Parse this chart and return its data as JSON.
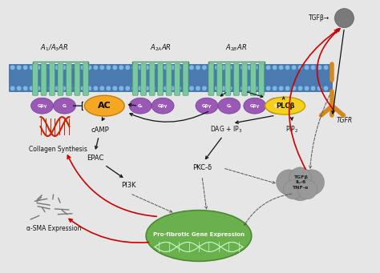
{
  "bg_color": "#e6e6e6",
  "colors": {
    "membrane_dot": "#7ab8e8",
    "membrane_stripe": "#4a7ab0",
    "receptor_helix": "#7bc8a0",
    "g_protein_purple": "#9b59b6",
    "ac_orange": "#f5a623",
    "plcb_yellow": "#f5d020",
    "tgfr_orange": "#d4891a",
    "green_nucleus": "#6ab04c",
    "gray_cloud": "#999999",
    "collagen_red": "#cc2200",
    "sma_gray": "#888888",
    "tgfb_ball": "#7a7a7a",
    "red_arrow": "#cc0000",
    "black_arrow": "#111111",
    "dashed_arrow": "#555555"
  },
  "labels": {
    "A1A3AR": "A$_1$/A$_3$AR",
    "A2AAR": "A$_{2A}$AR",
    "A2BAR": "A$_{2B}$AR",
    "AC": "AC",
    "cAMP": "cAMP",
    "EPAC": "EPAC",
    "PI3K": "PI3K",
    "DAG_IP3": "DAG + IP$_3$",
    "PIP2": "PIP$_2$",
    "PKC": "PKC-δ",
    "PLCb": "PLCβ",
    "TGFR": "TGFR",
    "TGFb": "TGFβ",
    "cytokines": "TGFβ\nIL-6\nTNF-α",
    "collagen": "Collagen Synthesis",
    "alpha_SMA": "α-SMA Expression",
    "profibrotic": "Pro-fibrotic Gene Expression"
  }
}
